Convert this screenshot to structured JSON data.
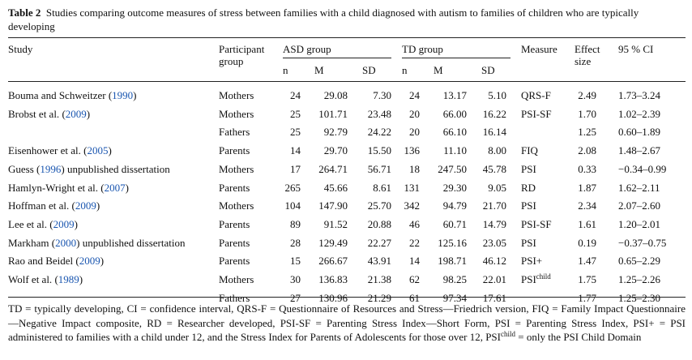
{
  "table": {
    "label": "Table 2",
    "caption": "Studies comparing outcome measures of stress between families with a child diagnosed with autism to families of children who are typically developing",
    "headers": {
      "study": "Study",
      "participant": "Participant group",
      "asd_group": "ASD group",
      "td_group": "TD group",
      "n": "n",
      "m": "M",
      "sd": "SD",
      "measure": "Measure",
      "effect": "Effect size",
      "ci": "95 % CI"
    },
    "rows": [
      {
        "study": "Bouma and Schweitzer",
        "year": "1990",
        "study_suffix": "",
        "group": "Mothers",
        "asd_n": "24",
        "asd_m": "29.08",
        "asd_sd": "7.30",
        "td_n": "24",
        "td_m": "13.17",
        "td_sd": "5.10",
        "measure": "QRS-F",
        "measure_sup": "",
        "effect": "2.49",
        "ci": "1.73–3.24"
      },
      {
        "study": "Brobst et al.",
        "year": "2009",
        "study_suffix": "",
        "group": "Mothers",
        "asd_n": "25",
        "asd_m": "101.71",
        "asd_sd": "23.48",
        "td_n": "20",
        "td_m": "66.00",
        "td_sd": "16.22",
        "measure": "PSI-SF",
        "measure_sup": "",
        "effect": "1.70",
        "ci": "1.02–2.39"
      },
      {
        "study": "",
        "year": "",
        "study_suffix": "",
        "group": "Fathers",
        "asd_n": "25",
        "asd_m": "92.79",
        "asd_sd": "24.22",
        "td_n": "20",
        "td_m": "66.10",
        "td_sd": "16.14",
        "measure": "",
        "measure_sup": "",
        "effect": "1.25",
        "ci": "0.60–1.89"
      },
      {
        "study": "Eisenhower et al.",
        "year": "2005",
        "study_suffix": "",
        "group": "Parents",
        "asd_n": "14",
        "asd_m": "29.70",
        "asd_sd": "15.50",
        "td_n": "136",
        "td_m": "11.10",
        "td_sd": "8.00",
        "measure": "FIQ",
        "measure_sup": "",
        "effect": "2.08",
        "ci": "1.48–2.67"
      },
      {
        "study": "Guess",
        "year": "1996",
        "study_suffix": " unpublished dissertation",
        "group": "Mothers",
        "asd_n": "17",
        "asd_m": "264.71",
        "asd_sd": "56.71",
        "td_n": "18",
        "td_m": "247.50",
        "td_sd": "45.78",
        "measure": "PSI",
        "measure_sup": "",
        "effect": "0.33",
        "ci": "−0.34–0.99"
      },
      {
        "study": "Hamlyn-Wright et al.",
        "year": "2007",
        "study_suffix": "",
        "group": "Parents",
        "asd_n": "265",
        "asd_m": "45.66",
        "asd_sd": "8.61",
        "td_n": "131",
        "td_m": "29.30",
        "td_sd": "9.05",
        "measure": "RD",
        "measure_sup": "",
        "effect": "1.87",
        "ci": "1.62–2.11"
      },
      {
        "study": "Hoffman et al.",
        "year": "2009",
        "study_suffix": "",
        "group": "Mothers",
        "asd_n": "104",
        "asd_m": "147.90",
        "asd_sd": "25.70",
        "td_n": "342",
        "td_m": "94.79",
        "td_sd": "21.70",
        "measure": "PSI",
        "measure_sup": "",
        "effect": "2.34",
        "ci": "2.07–2.60"
      },
      {
        "study": "Lee et al.",
        "year": "2009",
        "study_suffix": "",
        "group": "Parents",
        "asd_n": "89",
        "asd_m": "91.52",
        "asd_sd": "20.88",
        "td_n": "46",
        "td_m": "60.71",
        "td_sd": "14.79",
        "measure": "PSI-SF",
        "measure_sup": "",
        "effect": "1.61",
        "ci": "1.20–2.01"
      },
      {
        "study": "Markham",
        "year": "2000",
        "study_suffix": " unpublished dissertation",
        "group": "Parents",
        "asd_n": "28",
        "asd_m": "129.49",
        "asd_sd": "22.27",
        "td_n": "22",
        "td_m": "125.16",
        "td_sd": "23.05",
        "measure": "PSI",
        "measure_sup": "",
        "effect": "0.19",
        "ci": "−0.37–0.75"
      },
      {
        "study": "Rao and Beidel",
        "year": "2009",
        "study_suffix": "",
        "group": "Parents",
        "asd_n": "15",
        "asd_m": "266.67",
        "asd_sd": "43.91",
        "td_n": "14",
        "td_m": "198.71",
        "td_sd": "46.12",
        "measure": "PSI+",
        "measure_sup": "",
        "effect": "1.47",
        "ci": "0.65–2.29"
      },
      {
        "study": "Wolf et al.",
        "year": "1989",
        "study_suffix": "",
        "group": "Mothers",
        "asd_n": "30",
        "asd_m": "136.83",
        "asd_sd": "21.38",
        "td_n": "62",
        "td_m": "98.25",
        "td_sd": "22.01",
        "measure": "PSI",
        "measure_sup": "child",
        "effect": "1.75",
        "ci": "1.25–2.26"
      },
      {
        "study": "",
        "year": "",
        "study_suffix": "",
        "group": "Fathers",
        "asd_n": "27",
        "asd_m": "130.96",
        "asd_sd": "21.29",
        "td_n": "61",
        "td_m": "97.34",
        "td_sd": "17.61",
        "measure": "",
        "measure_sup": "",
        "effect": "1.77",
        "ci": "1.25–2.30"
      }
    ],
    "footnote": {
      "part1": "TD = typically developing, CI = confidence interval, QRS-F = Questionnaire of Resources and Stress—Friedrich version, FIQ = Family Impact Questionnaire—Negative Impact composite, RD = Researcher developed, PSI-SF = Parenting Stress Index—Short Form, PSI = Parenting Stress Index, PSI+ = PSI administered to families with a child under 12, and the Stress Index for Parents of Adolescents for those over 12, PSI",
      "sup": "child",
      "part2": " = only the PSI Child Domain"
    }
  }
}
